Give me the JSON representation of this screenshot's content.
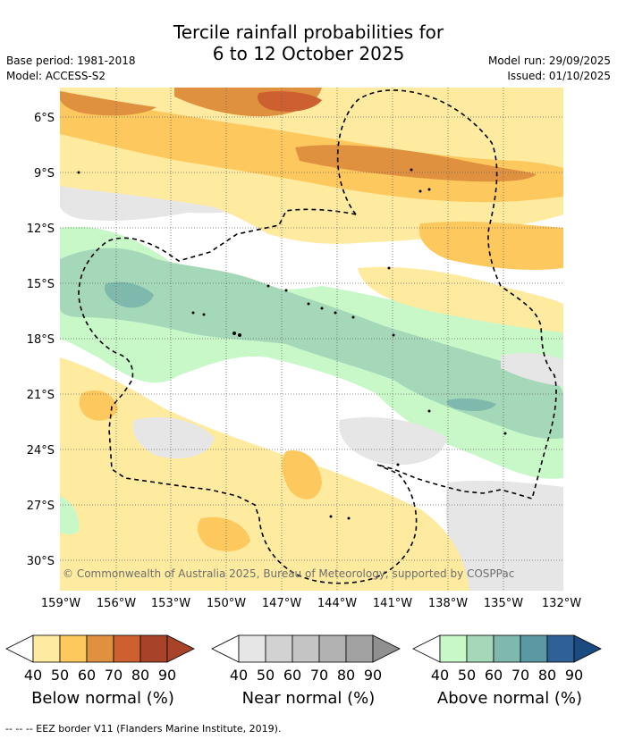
{
  "title_line1": "Tercile rainfall probabilities for",
  "title_line2": "6 to 12 October 2025",
  "base_period": "Base period: 1981-2018",
  "model": "Model: ACCESS-S2",
  "model_run": "Model run: 29/09/2025",
  "issued": "Issued: 01/10/2025",
  "copyright": "© Commonwealth of Australia 2025, Bureau of Meteorology, supported by COSPPac",
  "lat_labels": [
    "6°S",
    "9°S",
    "12°S",
    "15°S",
    "18°S",
    "21°S",
    "24°S",
    "27°S",
    "30°S"
  ],
  "lon_labels": [
    "159°W",
    "156°W",
    "153°W",
    "150°W",
    "147°W",
    "144°W",
    "141°W",
    "138°W",
    "135°W",
    "132°W"
  ],
  "colorbars": [
    {
      "label": "Below normal (%)",
      "ticks": [
        "40",
        "50",
        "60",
        "70",
        "80",
        "90"
      ],
      "colors": [
        "#ffeba0",
        "#fdc85e",
        "#e0913f",
        "#cc6030",
        "#a8432a",
        "#a8432a"
      ]
    },
    {
      "label": "Near normal (%)",
      "ticks": [
        "40",
        "50",
        "60",
        "70",
        "80",
        "90"
      ],
      "colors": [
        "#e6e6e6",
        "#d2d2d2",
        "#c4c4c4",
        "#b2b2b2",
        "#a2a2a2",
        "#909090"
      ]
    },
    {
      "label": "Above normal (%)",
      "ticks": [
        "40",
        "50",
        "60",
        "70",
        "80",
        "90"
      ],
      "colors": [
        "#c8f7c8",
        "#a4d8b8",
        "#7fb8ac",
        "#5a98a4",
        "#2f6098",
        "#1a4a80"
      ]
    }
  ],
  "footer": "--  --  -- EEZ border V11 (Flanders Marine Institute, 2019)."
}
